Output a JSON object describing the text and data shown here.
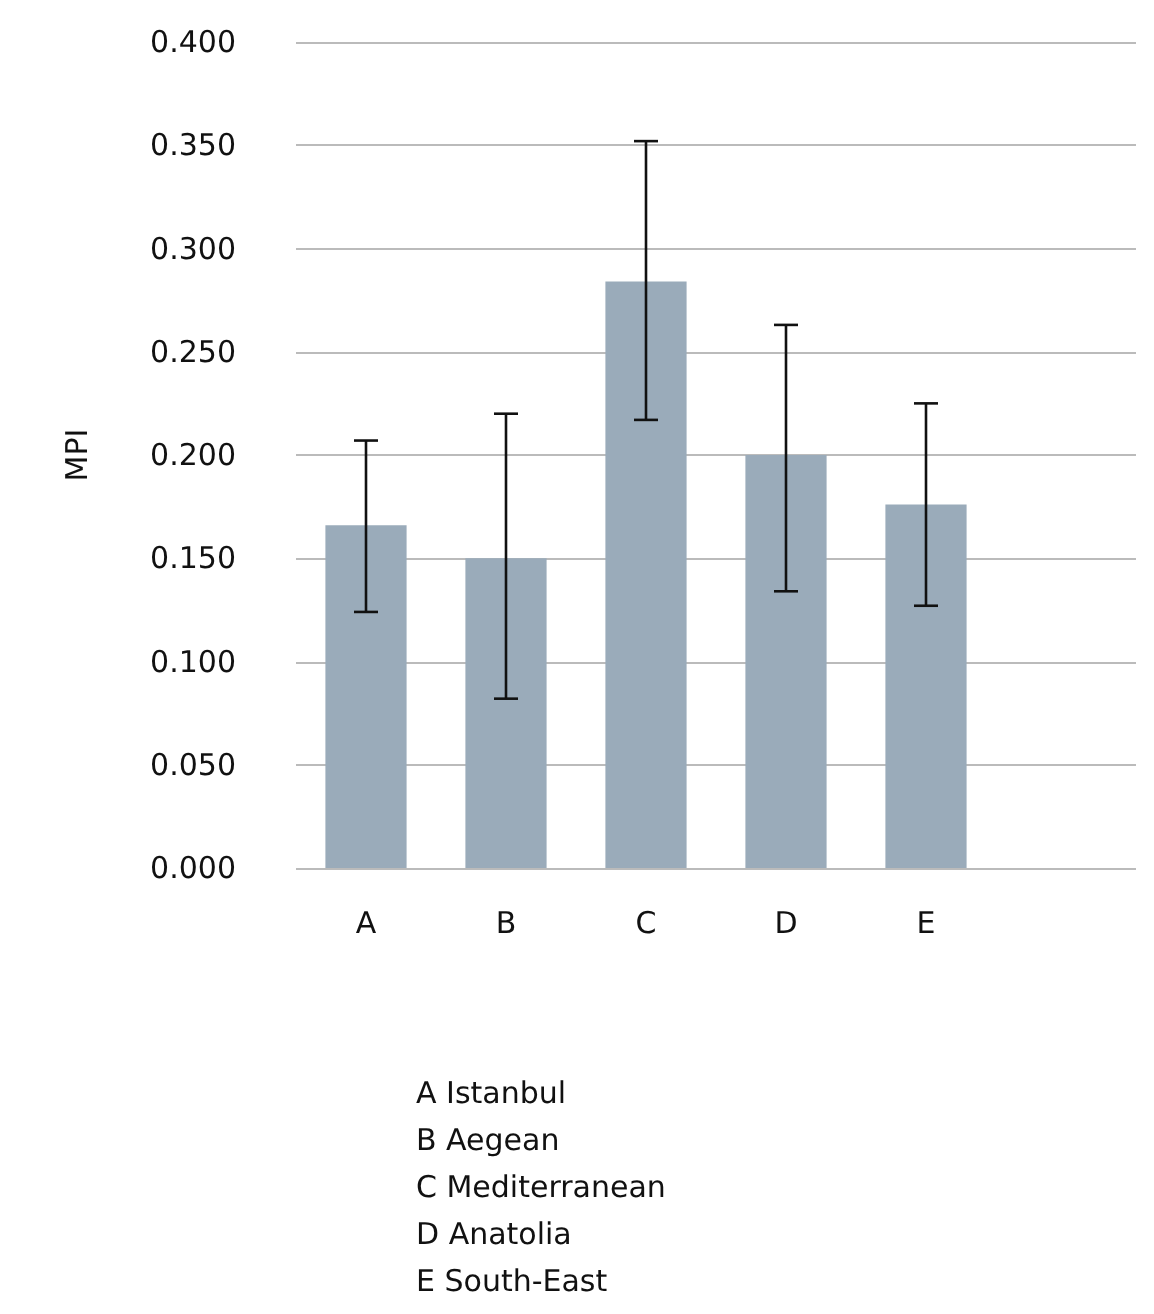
{
  "chart_data": {
    "type": "bar",
    "ylabel": "MPI",
    "categories": [
      "A",
      "B",
      "C",
      "D",
      "E",
      null
    ],
    "values": [
      0.166,
      0.15,
      0.284,
      0.2,
      0.176,
      null
    ],
    "errors": [
      [
        0.124,
        0.207
      ],
      [
        0.082,
        0.22
      ],
      [
        0.217,
        0.352
      ],
      [
        0.134,
        0.263
      ],
      [
        0.127,
        0.225
      ],
      null
    ],
    "color": "#9aabba",
    "ylim": [
      0,
      0.4
    ],
    "yticks": [
      {
        "value": 0,
        "label": "0.000"
      },
      {
        "value": 0.05,
        "label": "0.050"
      },
      {
        "value": 0.1,
        "label": "0.100"
      },
      {
        "value": 0.15,
        "label": "0.150"
      },
      {
        "value": 0.2,
        "label": "0.200"
      },
      {
        "value": 0.25,
        "label": "0.250"
      },
      {
        "value": 0.3,
        "label": "0.300"
      },
      {
        "value": 0.35,
        "label": "0.350"
      },
      {
        "value": 0.4,
        "label": "0.400"
      }
    ],
    "grid": "y",
    "annotations": [
      "A Istanbul",
      "B Aegean",
      "C Mediterranean",
      "D Anatolia",
      "E South-East"
    ]
  }
}
